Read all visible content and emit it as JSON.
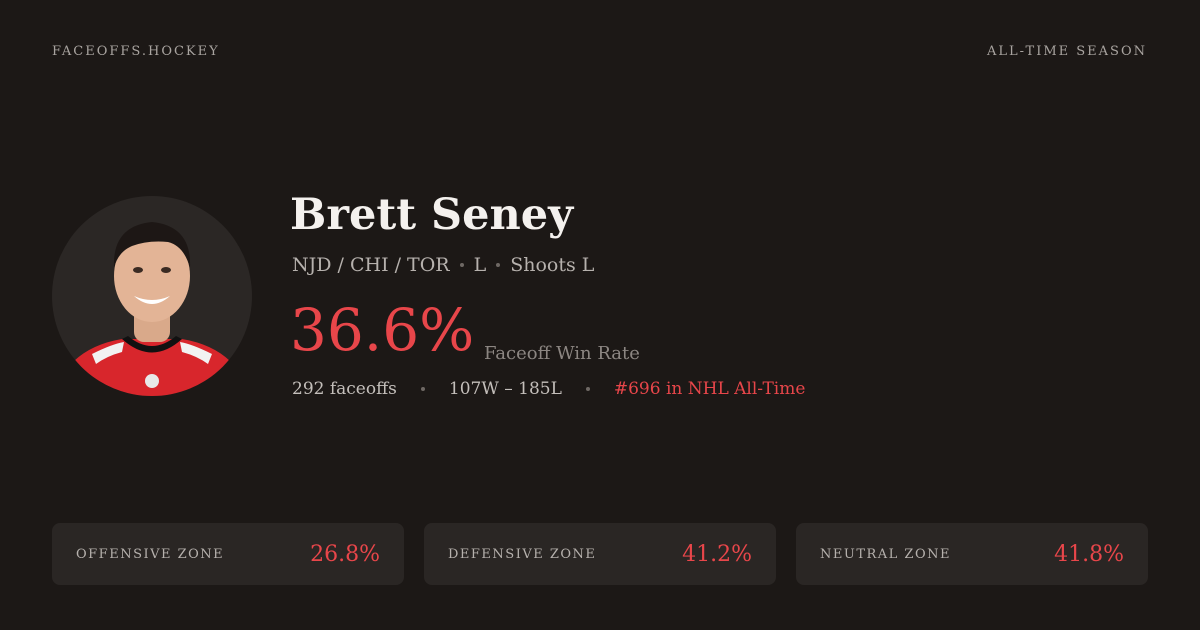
{
  "header": {
    "site": "FACEOFFS.HOCKEY",
    "scope": "ALL-TIME SEASON"
  },
  "player": {
    "name": "Brett Seney",
    "teams": "NJD / CHI / TOR",
    "position": "L",
    "shoots": "Shoots L"
  },
  "headline": {
    "value": "36.6%",
    "label": "Faceoff Win Rate"
  },
  "stats": {
    "faceoffs": "292 faceoffs",
    "record": "107W – 185L",
    "rank": "#696 in NHL All-Time"
  },
  "zones": [
    {
      "label": "OFFENSIVE ZONE",
      "value": "26.8%"
    },
    {
      "label": "DEFENSIVE ZONE",
      "value": "41.2%"
    },
    {
      "label": "NEUTRAL ZONE",
      "value": "41.8%"
    }
  ]
}
